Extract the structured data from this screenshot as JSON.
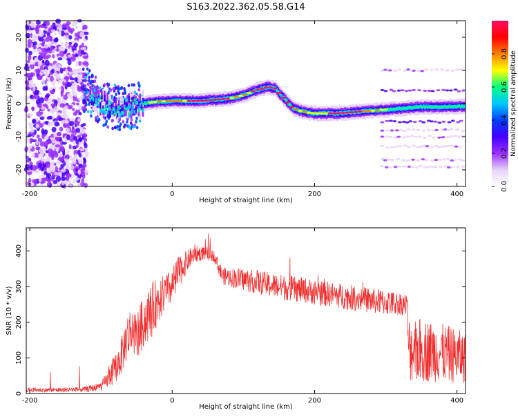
{
  "title": "S163.2022.362.05.58.G14",
  "colors": {
    "snr_line": "#f03030",
    "background": "#ffffff",
    "axis": "#000000",
    "spectral_map": [
      "#ffffff",
      "#e6d2f8",
      "#9b30ff",
      "#4400ff",
      "#0040ff",
      "#00c8ff",
      "#00ff80",
      "#ffff00",
      "#ff8000",
      "#ff0000",
      "#ff1060"
    ]
  },
  "chart_data": [
    {
      "type": "heatmap",
      "xlabel": "Height of straight line (km)",
      "ylabel": "Frequency (Hz)",
      "xlim": [
        -205,
        412
      ],
      "ylim": [
        -25,
        25
      ],
      "xticks": [
        -200,
        0,
        200,
        400
      ],
      "yticks": [
        -20,
        -10,
        0,
        10,
        20
      ],
      "grid": false,
      "colorbar": {
        "label": "Normalized spectral amplitude",
        "range": [
          0,
          1
        ],
        "ticks": [
          0.0,
          0.2,
          0.4,
          0.6,
          0.8
        ]
      },
      "ridge": {
        "x": [
          -120,
          -100,
          -85,
          -70,
          -55,
          -40,
          -25,
          0,
          40,
          80,
          100,
          120,
          135,
          145,
          155,
          170,
          185,
          200,
          230,
          260,
          290,
          320,
          350,
          380,
          412
        ],
        "frequency_hz": [
          4,
          0,
          -1,
          -1,
          -0.5,
          0,
          0.5,
          0.8,
          0.8,
          1.5,
          2.5,
          4.2,
          5,
          4.5,
          2,
          -1.5,
          -2.5,
          -3,
          -3,
          -2.5,
          -2,
          -1.5,
          -1,
          -1,
          -0.8
        ]
      },
      "sidebands_x_start": 295,
      "sidebands_frequency_hz": [
        4,
        -5.5,
        -8,
        -10,
        -13,
        -17,
        -19,
        10
      ]
    },
    {
      "type": "line",
      "xlabel": "Height of straight line (km)",
      "ylabel": "SNR (10 * v/v)",
      "xlim": [
        -205,
        412
      ],
      "ylim": [
        0,
        465
      ],
      "xticks": [
        -200,
        0,
        200,
        400
      ],
      "yticks": [
        0,
        100,
        200,
        300,
        400
      ],
      "grid": false,
      "series": [
        {
          "x": [
            -205,
            -160,
            -120,
            -100,
            -90,
            -80,
            -70,
            -65,
            -60,
            -55,
            -50,
            -45,
            -40,
            -30,
            -20,
            -10,
            0,
            5,
            10,
            20,
            30,
            45,
            60,
            70,
            100,
            150,
            200,
            250,
            300,
            330,
            332,
            360,
            390,
            412
          ],
          "y": [
            10,
            10,
            12,
            20,
            40,
            70,
            110,
            150,
            170,
            180,
            160,
            180,
            200,
            230,
            260,
            280,
            300,
            320,
            340,
            370,
            390,
            395,
            385,
            330,
            320,
            300,
            285,
            270,
            255,
            250,
            125,
            120,
            110,
            100
          ],
          "spread": [
            8,
            8,
            10,
            15,
            30,
            50,
            70,
            80,
            90,
            90,
            80,
            90,
            90,
            100,
            80,
            70,
            60,
            70,
            60,
            40,
            30,
            25,
            20,
            30,
            40,
            45,
            45,
            45,
            45,
            40,
            120,
            110,
            100,
            90
          ]
        }
      ]
    }
  ]
}
